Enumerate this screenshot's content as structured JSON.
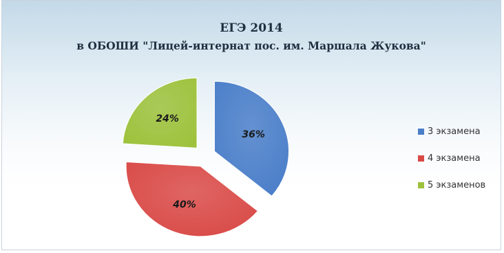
{
  "chart_data": {
    "type": "pie",
    "title": "ЕГЭ 2014",
    "subtitle": "в  ОБОШИ \"Лицей-интернат пос. им. Маршала Жукова\"",
    "categories": [
      "3 экзамена",
      "4 экзамена",
      "5 экзаменов"
    ],
    "values": [
      36,
      40,
      24
    ],
    "labels": [
      "36%",
      "40%",
      "24%"
    ],
    "colors": [
      "#4a7ec9",
      "#d94a47",
      "#9ec23c"
    ],
    "exploded": true,
    "legend_position": "right"
  }
}
